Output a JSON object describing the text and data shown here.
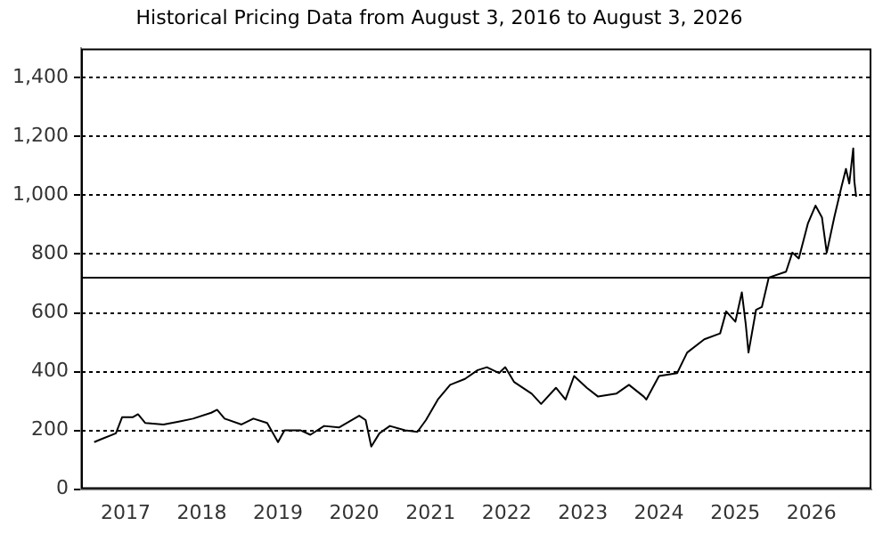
{
  "chart_data": {
    "type": "line",
    "title": "Historical Pricing Data from August 3, 2016 to August 3, 2026",
    "x": [
      "2016-08-03",
      "2016-09-05",
      "2016-11-15",
      "2016-12-15",
      "2017-02-05",
      "2017-03-01",
      "2017-04-05",
      "2017-07-01",
      "2017-09-12",
      "2017-11-20",
      "2018-02-15",
      "2018-03-15",
      "2018-04-20",
      "2018-07-10",
      "2018-09-05",
      "2018-11-10",
      "2019-01-01",
      "2019-02-01",
      "2019-04-20",
      "2019-06-05",
      "2019-08-10",
      "2019-10-20",
      "2020-01-25",
      "2020-02-25",
      "2020-03-23",
      "2020-05-01",
      "2020-06-20",
      "2020-09-01",
      "2020-10-30",
      "2020-12-10",
      "2021-02-05",
      "2021-04-05",
      "2021-06-15",
      "2021-08-15",
      "2021-09-28",
      "2021-11-25",
      "2021-12-25",
      "2022-02-05",
      "2022-05-01",
      "2022-06-15",
      "2022-08-25",
      "2022-10-10",
      "2022-11-20",
      "2023-01-20",
      "2023-03-15",
      "2023-06-10",
      "2023-08-10",
      "2023-10-20",
      "2023-11-01",
      "2024-01-01",
      "2024-03-28",
      "2024-05-15",
      "2024-08-05",
      "2024-10-20",
      "2024-11-18",
      "2025-01-01",
      "2025-02-01",
      "2025-02-20",
      "2025-03-05",
      "2025-04-10",
      "2025-05-08",
      "2025-06-10",
      "2025-09-01",
      "2025-10-01",
      "2025-11-01",
      "2025-12-15",
      "2026-01-20",
      "2026-02-20",
      "2026-03-15",
      "2026-04-20",
      "2026-05-25",
      "2026-06-15",
      "2026-07-01",
      "2026-07-20",
      "2026-07-25",
      "2026-08-03"
    ],
    "values": [
      160,
      170,
      190,
      245,
      245,
      255,
      225,
      220,
      230,
      240,
      260,
      270,
      240,
      220,
      240,
      225,
      160,
      200,
      200,
      185,
      215,
      210,
      250,
      235,
      145,
      190,
      215,
      200,
      195,
      235,
      305,
      355,
      375,
      405,
      415,
      395,
      415,
      365,
      325,
      290,
      345,
      305,
      385,
      345,
      315,
      325,
      355,
      315,
      305,
      385,
      395,
      465,
      510,
      530,
      605,
      570,
      670,
      560,
      465,
      610,
      620,
      720,
      740,
      805,
      785,
      905,
      965,
      925,
      805,
      925,
      1030,
      1090,
      1040,
      1160,
      1050,
      995
    ],
    "color": "#000000",
    "xlim": [
      "2016-06-01",
      "2026-10-15"
    ],
    "xticks": [
      "2017",
      "2018",
      "2019",
      "2020",
      "2021",
      "2022",
      "2023",
      "2024",
      "2025",
      "2026"
    ],
    "ylim": [
      0,
      1500
    ],
    "yticks": [
      0,
      200,
      400,
      600,
      800,
      {
        "value": 1000,
        "label": "1,000"
      },
      {
        "value": 1200,
        "label": "1,200"
      },
      {
        "value": 1400,
        "label": "1,400"
      }
    ],
    "grid": "y",
    "ref_lines": [
      {
        "axis": "y",
        "value": 720,
        "color": "#000000"
      }
    ],
    "legend": false
  }
}
